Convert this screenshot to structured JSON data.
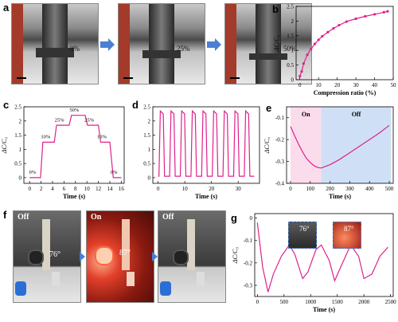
{
  "panels": {
    "a": {
      "letter": "a",
      "steps": [
        "0%",
        "25%",
        "50%"
      ]
    },
    "b": {
      "letter": "b"
    },
    "c": {
      "letter": "c"
    },
    "d": {
      "letter": "d"
    },
    "e": {
      "letter": "e"
    },
    "f": {
      "letter": "f",
      "photos": [
        {
          "state": "Off",
          "angle": "76°"
        },
        {
          "state": "On",
          "angle": "87°"
        },
        {
          "state": "Off",
          "angle": ""
        }
      ]
    },
    "g": {
      "letter": "g",
      "insets": [
        "76°",
        "87°"
      ]
    }
  },
  "colors": {
    "curve": "#e0208c",
    "on_shade": "#fbdcec",
    "off_shade": "#cfe0f6",
    "arrow": "#4a7fd4"
  },
  "chart_data": [
    {
      "id": "b",
      "type": "line",
      "xlabel": "Compression ratio (%)",
      "ylabel": "ΔC/C₀",
      "xlim": [
        -2,
        50
      ],
      "ylim": [
        0,
        2.5
      ],
      "xticks": [
        0,
        10,
        20,
        30,
        40,
        50
      ],
      "yticks": [
        0.0,
        0.5,
        1.0,
        1.5,
        2.0,
        2.5
      ],
      "x": [
        0,
        1,
        2,
        4,
        6,
        8,
        10,
        12,
        15,
        18,
        21,
        25,
        30,
        35,
        40,
        45,
        47
      ],
      "y": [
        0.12,
        0.28,
        0.55,
        0.85,
        1.05,
        1.22,
        1.36,
        1.48,
        1.62,
        1.75,
        1.86,
        1.98,
        2.08,
        2.16,
        2.23,
        2.3,
        2.33
      ],
      "markers": true
    },
    {
      "id": "c",
      "type": "line",
      "xlabel": "Time (s)",
      "ylabel": "ΔC/C₀",
      "xlim": [
        -1,
        16.5
      ],
      "ylim": [
        -0.2,
        2.5
      ],
      "xticks": [
        0,
        2,
        4,
        6,
        8,
        10,
        12,
        14,
        16
      ],
      "yticks": [
        0.0,
        0.5,
        1.0,
        1.5,
        2.0,
        2.5
      ],
      "x": [
        0,
        1.9,
        2.3,
        4.3,
        4.7,
        6.9,
        7.3,
        9.7,
        10.1,
        12.0,
        12.4,
        14.0,
        14.6,
        16
      ],
      "y": [
        0.0,
        0.0,
        1.25,
        1.25,
        1.85,
        1.85,
        2.2,
        2.2,
        1.85,
        1.85,
        1.25,
        1.25,
        0.0,
        0.0
      ],
      "annotations": [
        {
          "text": "0%",
          "x": 0.5,
          "y": 0.05
        },
        {
          "text": "10%",
          "x": 2.8,
          "y": 1.3
        },
        {
          "text": "25%",
          "x": 5.2,
          "y": 1.9
        },
        {
          "text": "50%",
          "x": 7.8,
          "y": 2.25
        },
        {
          "text": "25%",
          "x": 10.4,
          "y": 1.9
        },
        {
          "text": "10%",
          "x": 12.6,
          "y": 1.3
        },
        {
          "text": "0%",
          "x": 14.7,
          "y": 0.05
        }
      ]
    },
    {
      "id": "d",
      "type": "line",
      "xlabel": "Time (s)",
      "ylabel": "",
      "xlim": [
        -2,
        38
      ],
      "ylim": [
        -0.2,
        2.5
      ],
      "xticks": [
        0,
        10,
        20,
        30
      ],
      "yticks": [
        0.0,
        0.5,
        1.0,
        1.5,
        2.0,
        2.5
      ],
      "cycles": 9,
      "cycle_start": 0,
      "cycle_period": 4.0,
      "low": 0.05,
      "high": 2.35,
      "x_end": 36
    },
    {
      "id": "e",
      "type": "line",
      "xlabel": "Time (s)",
      "ylabel": "ΔC/C₀",
      "xlim": [
        -20,
        520
      ],
      "ylim": [
        -0.4,
        -0.05
      ],
      "xticks": [
        0,
        100,
        200,
        300,
        400,
        500
      ],
      "yticks": [
        -0.1,
        -0.2,
        -0.3,
        -0.4
      ],
      "x": [
        0,
        20,
        40,
        60,
        80,
        100,
        120,
        140,
        155,
        170,
        200,
        250,
        300,
        350,
        400,
        450,
        500
      ],
      "y": [
        -0.14,
        -0.18,
        -0.22,
        -0.255,
        -0.285,
        -0.305,
        -0.32,
        -0.328,
        -0.33,
        -0.325,
        -0.315,
        -0.29,
        -0.26,
        -0.23,
        -0.2,
        -0.17,
        -0.135
      ],
      "regions": [
        {
          "label": "On",
          "x0": 0,
          "x1": 155
        },
        {
          "label": "Off",
          "x0": 155,
          "x1": 510
        }
      ]
    },
    {
      "id": "g",
      "type": "line",
      "xlabel": "Time (s)",
      "ylabel": "ΔC/C₀",
      "xlim": [
        -50,
        2550
      ],
      "ylim": [
        -0.35,
        0.02
      ],
      "xticks": [
        0,
        500,
        1000,
        1500,
        2000,
        2500
      ],
      "yticks": [
        0.0,
        -0.1,
        -0.2,
        -0.3
      ],
      "x": [
        0,
        100,
        200,
        300,
        450,
        600,
        700,
        850,
        950,
        1100,
        1200,
        1350,
        1450,
        1600,
        1750,
        1900,
        2000,
        2150,
        2300,
        2450
      ],
      "y": [
        -0.02,
        -0.22,
        -0.33,
        -0.25,
        -0.17,
        -0.12,
        -0.16,
        -0.27,
        -0.24,
        -0.14,
        -0.12,
        -0.19,
        -0.28,
        -0.2,
        -0.12,
        -0.17,
        -0.27,
        -0.25,
        -0.17,
        -0.13
      ]
    }
  ]
}
